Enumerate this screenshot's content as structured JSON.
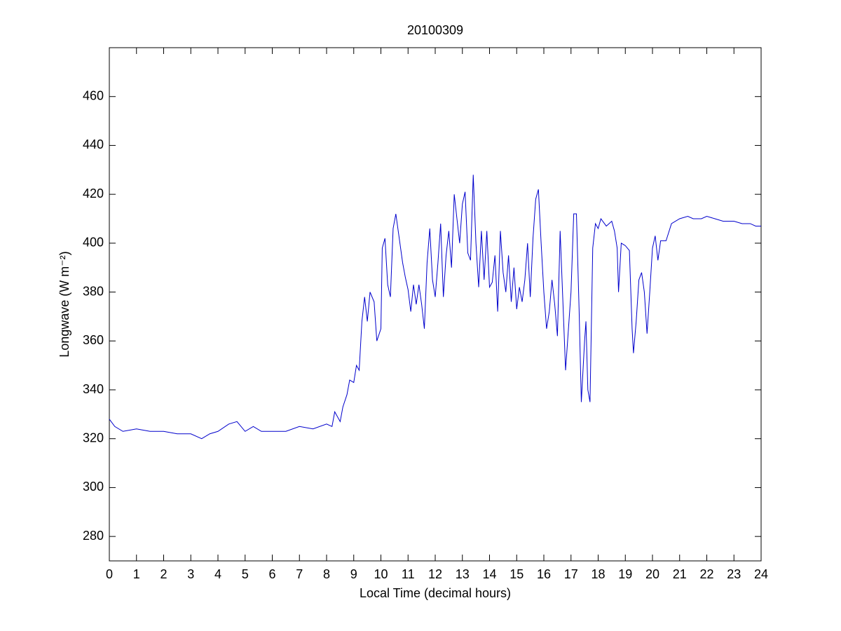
{
  "chart_data": {
    "type": "line",
    "title": "20100309",
    "xlabel": "Local Time (decimal hours)",
    "ylabel": "Longwave (W m⁻²)",
    "color": "#0000cc",
    "grid": false,
    "x": [
      0,
      0.2,
      0.5,
      1,
      1.5,
      2,
      2.5,
      3,
      3.4,
      3.7,
      4,
      4.4,
      4.7,
      5,
      5.3,
      5.6,
      6,
      6.5,
      7,
      7.5,
      8,
      8.2,
      8.3,
      8.5,
      8.6,
      8.75,
      8.85,
      9,
      9.1,
      9.2,
      9.3,
      9.4,
      9.5,
      9.6,
      9.75,
      9.85,
      10,
      10.05,
      10.15,
      10.25,
      10.35,
      10.45,
      10.55,
      10.7,
      10.8,
      10.9,
      11,
      11.1,
      11.2,
      11.3,
      11.4,
      11.5,
      11.6,
      11.7,
      11.8,
      11.9,
      12,
      12.1,
      12.2,
      12.3,
      12.4,
      12.5,
      12.6,
      12.7,
      12.8,
      12.9,
      13,
      13.1,
      13.2,
      13.3,
      13.4,
      13.5,
      13.6,
      13.7,
      13.8,
      13.9,
      14,
      14.1,
      14.2,
      14.3,
      14.4,
      14.5,
      14.6,
      14.7,
      14.8,
      14.9,
      15,
      15.1,
      15.2,
      15.3,
      15.4,
      15.5,
      15.6,
      15.7,
      15.8,
      15.9,
      16,
      16.1,
      16.2,
      16.3,
      16.4,
      16.5,
      16.6,
      16.8,
      17,
      17.1,
      17.2,
      17.3,
      17.38,
      17.5,
      17.55,
      17.62,
      17.7,
      17.8,
      17.9,
      18,
      18.1,
      18.3,
      18.5,
      18.6,
      18.7,
      18.75,
      18.85,
      19,
      19.15,
      19.25,
      19.3,
      19.4,
      19.5,
      19.6,
      19.7,
      19.8,
      19.9,
      20,
      20.1,
      20.2,
      20.3,
      20.5,
      20.7,
      21,
      21.3,
      21.5,
      21.8,
      22,
      22.3,
      22.6,
      23,
      23.3,
      23.6,
      23.8,
      24
    ],
    "values": [
      328,
      325,
      323,
      324,
      323,
      323,
      322,
      322,
      320,
      322,
      323,
      326,
      327,
      323,
      325,
      323,
      323,
      323,
      325,
      324,
      326,
      325,
      331,
      327,
      333,
      338,
      344,
      343,
      350,
      348,
      368,
      378,
      368,
      380,
      376,
      360,
      365,
      398,
      402,
      383,
      378,
      406,
      412,
      400,
      392,
      386,
      381,
      372,
      383,
      375,
      383,
      375,
      365,
      392,
      406,
      385,
      378,
      392,
      408,
      378,
      395,
      405,
      390,
      420,
      410,
      400,
      416,
      421,
      396,
      393,
      428,
      400,
      382,
      405,
      385,
      405,
      382,
      384,
      395,
      372,
      405,
      388,
      380,
      395,
      376,
      390,
      373,
      382,
      376,
      385,
      400,
      378,
      402,
      418,
      422,
      400,
      380,
      365,
      372,
      385,
      375,
      362,
      405,
      348,
      380,
      412,
      412,
      372,
      335,
      360,
      368,
      340,
      335,
      398,
      408,
      406,
      410,
      407,
      409,
      405,
      398,
      380,
      400,
      399,
      397,
      365,
      355,
      368,
      385,
      388,
      380,
      363,
      380,
      398,
      403,
      393,
      401,
      401,
      408,
      410,
      411,
      410,
      410,
      411,
      410,
      409,
      409,
      408,
      408,
      407,
      407
    ],
    "xlim": [
      0,
      24
    ],
    "xticks": [
      0,
      1,
      2,
      3,
      4,
      5,
      6,
      7,
      8,
      9,
      10,
      11,
      12,
      13,
      14,
      15,
      16,
      17,
      18,
      19,
      20,
      21,
      22,
      23,
      24
    ],
    "ylim": [
      270,
      480
    ],
    "yticks": [
      280,
      300,
      320,
      340,
      360,
      380,
      400,
      420,
      440,
      460
    ]
  }
}
